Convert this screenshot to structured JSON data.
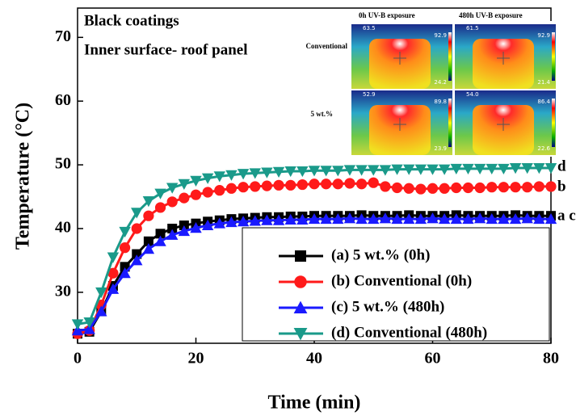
{
  "chart_data": {
    "type": "line",
    "title": "Black coatings",
    "subtitle": "Inner surface- roof panel",
    "xlabel": "Time (min)",
    "ylabel": "Temperature (°C)",
    "x": [
      0,
      2,
      4,
      6,
      8,
      10,
      12,
      14,
      16,
      18,
      20,
      22,
      24,
      26,
      28,
      30,
      32,
      34,
      36,
      38,
      40,
      42,
      44,
      46,
      48,
      50,
      52,
      54,
      56,
      58,
      60,
      62,
      64,
      66,
      68,
      70,
      72,
      74,
      76,
      78,
      80
    ],
    "series": [
      {
        "name": "(a) 5 wt.% (0h)",
        "color": "#000000",
        "marker": "square",
        "values": [
          23.5,
          23.8,
          27,
          31,
          34,
          36,
          38,
          39.2,
          40,
          40.5,
          40.8,
          41.1,
          41.3,
          41.5,
          41.6,
          41.7,
          41.8,
          41.8,
          41.9,
          41.9,
          42,
          42,
          42,
          42,
          42.1,
          42,
          42,
          42,
          42.1,
          42,
          42,
          42,
          42.1,
          42,
          42,
          42,
          42,
          42.1,
          42,
          42,
          42
        ]
      },
      {
        "name": "(b) Conventional (0h)",
        "color": "#ff1a1a",
        "marker": "circle",
        "values": [
          23.5,
          24,
          28,
          33,
          37,
          40,
          42,
          43.3,
          44.2,
          44.8,
          45.3,
          45.7,
          46,
          46.3,
          46.5,
          46.6,
          46.7,
          46.8,
          46.8,
          46.9,
          47,
          47,
          47,
          47.1,
          47,
          47.2,
          46.6,
          46.4,
          46.3,
          46.2,
          46.3,
          46.3,
          46.4,
          46.4,
          46.4,
          46.5,
          46.5,
          46.5,
          46.5,
          46.6,
          46.6
        ]
      },
      {
        "name": "(c) 5 wt.% (480h)",
        "color": "#1a1aff",
        "marker": "triangle-up",
        "values": [
          24,
          24.2,
          27,
          30.5,
          33,
          35,
          36.8,
          38,
          39,
          39.6,
          40.1,
          40.5,
          40.8,
          41,
          41.1,
          41.2,
          41.3,
          41.3,
          41.4,
          41.4,
          41.5,
          41.5,
          41.5,
          41.6,
          41.5,
          41.5,
          41.6,
          41.5,
          41.5,
          41.5,
          41.6,
          41.5,
          41.5,
          41.5,
          41.6,
          41.5,
          41.5,
          41.5,
          41.6,
          41.5,
          41.5
        ]
      },
      {
        "name": "(d) Conventional (480h)",
        "color": "#1a9a8a",
        "marker": "triangle-down",
        "values": [
          25,
          25.3,
          30,
          35.5,
          39.5,
          42.5,
          44.3,
          45.5,
          46.4,
          47,
          47.5,
          47.9,
          48.2,
          48.4,
          48.6,
          48.7,
          48.8,
          48.9,
          49,
          49,
          49.1,
          49.1,
          49.1,
          49.2,
          49.2,
          49.2,
          49.2,
          49.3,
          49.3,
          49.3,
          49.3,
          49.3,
          49.4,
          49.4,
          49.4,
          49.4,
          49.4,
          49.5,
          49.5,
          49.5,
          49.5
        ]
      }
    ],
    "annotations": [
      "d",
      "b",
      "a c"
    ],
    "xlim": [
      0,
      80
    ],
    "xticks": [
      0,
      20,
      40,
      60,
      80
    ],
    "ylim": [
      22,
      74.6
    ],
    "yticks": [
      30,
      40,
      50,
      60,
      70
    ],
    "grid": false,
    "legend": "lower right",
    "inset": {
      "columns": [
        "0h UV-B exposure",
        "480h UV-B exposure"
      ],
      "rows": [
        "Conventional",
        "5 wt.%"
      ],
      "images": [
        {
          "readout": "63.5",
          "max": "92.9",
          "min": "24.2"
        },
        {
          "readout": "61.5",
          "max": "92.9",
          "min": "21.4"
        },
        {
          "readout": "52.9",
          "max": "89.8",
          "min": "23.9"
        },
        {
          "readout": "54.0",
          "max": "86.4",
          "min": "22.6"
        }
      ]
    }
  }
}
